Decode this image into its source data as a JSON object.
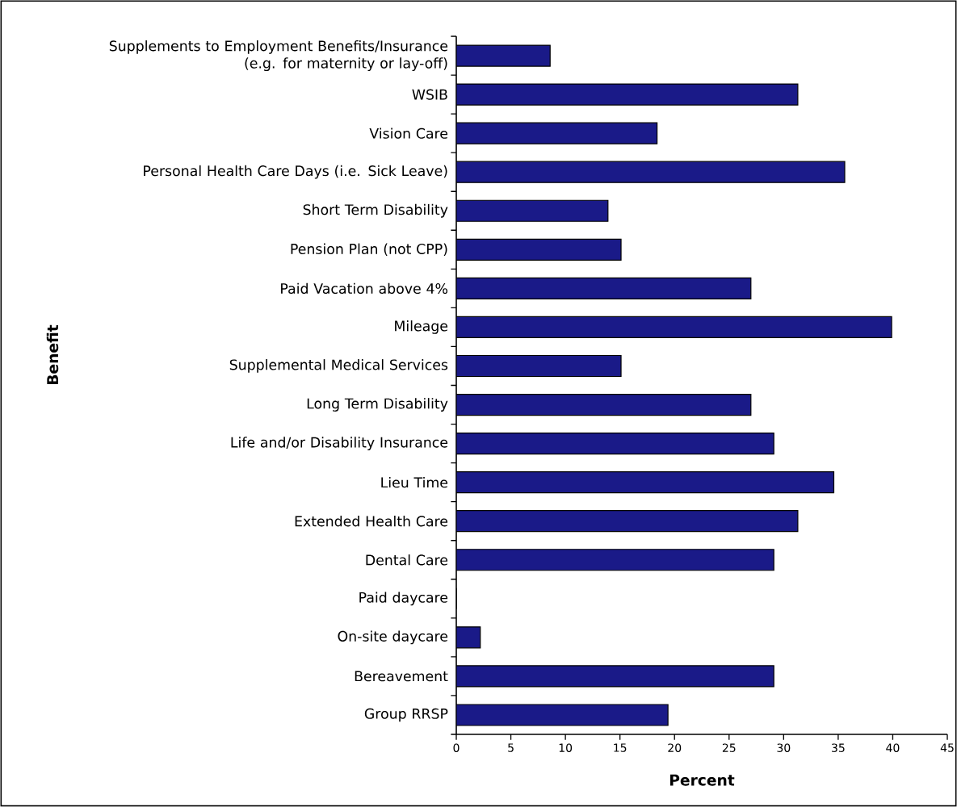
{
  "chart_data": {
    "type": "bar",
    "orientation": "horizontal",
    "xlabel": "Percent",
    "ylabel": "Benefit",
    "color": "#1a1a88",
    "categories": [
      "Supplements to Employment Benefits/Insurance (e.g. for maternity or lay-off)",
      "WSIB",
      "Vision Care",
      "Personal Health Care Days (i.e. Sick Leave)",
      "Short Term Disability",
      "Pension Plan (not CPP)",
      "Paid Vacation above 4%",
      "Mileage",
      "Supplemental Medical Services",
      "Long Term Disability",
      "Life and/or Disability Insurance",
      "Lieu Time",
      "Extended Health Care",
      "Dental Care",
      "Paid daycare",
      "On-site daycare",
      "Bereavement",
      "Group RRSP"
    ],
    "values": [
      8.6,
      31.3,
      18.4,
      35.6,
      13.9,
      15.1,
      27.0,
      39.9,
      15.1,
      27.0,
      29.1,
      34.6,
      31.3,
      29.1,
      0,
      2.2,
      29.1,
      19.4
    ],
    "xlim": [
      0,
      45
    ],
    "xticks": [
      0,
      5,
      10,
      15,
      20,
      25,
      30,
      35,
      40,
      45
    ]
  }
}
